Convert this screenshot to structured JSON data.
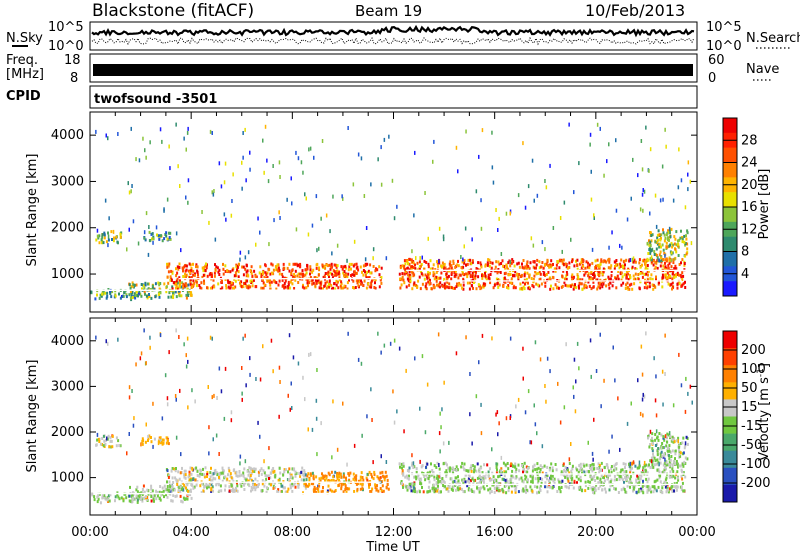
{
  "header": {
    "station": "Blackstone (fitACF)",
    "beam": "Beam 19",
    "date": "10/Feb/2013"
  },
  "top_panels": {
    "nsky_label": "N.Sky",
    "nsky_ticks": [
      "10^5",
      "10^0"
    ],
    "nsearch_label": "N.Search",
    "nsearch_ticks": [
      "10^5",
      "10^0"
    ],
    "freq_label": "Freq.",
    "freq_unit": "[MHz]",
    "freq_ticks": [
      "18",
      "8"
    ],
    "nave_label": "Nave",
    "nave_ticks": [
      "60",
      "0"
    ],
    "cpid_label": "CPID",
    "cpid_value": "twofsound -3501"
  },
  "chart_data": [
    {
      "type": "heatmap",
      "name": "power",
      "xlabel": "Time UT",
      "ylabel": "Slant Range [km]",
      "xlim_hours": [
        0,
        24
      ],
      "ylim": [
        180,
        4500
      ],
      "y_ticks": [
        "1000",
        "2000",
        "3000",
        "4000"
      ],
      "x_ticks": [
        "00:00",
        "04:00",
        "08:00",
        "12:00",
        "16:00",
        "20:00",
        "00:00"
      ],
      "colorbar": {
        "label": "Power [dB]",
        "ticks": [
          "4",
          "8",
          "12",
          "16",
          "20",
          "24",
          "28"
        ],
        "colors": [
          "#1a1aff",
          "#2256d8",
          "#1f6fa8",
          "#2e8a6e",
          "#4ea65a",
          "#8cc43a",
          "#e8e000",
          "#ffb400",
          "#ff8000",
          "#ff5000",
          "#ff2000",
          "#ee0000"
        ]
      },
      "echo_bands": [
        {
          "t0": 0.0,
          "t1": 2.0,
          "r0": 480,
          "r1": 700,
          "level": 0.3
        },
        {
          "t0": 1.5,
          "t1": 4.0,
          "r0": 500,
          "r1": 850,
          "level": 0.45
        },
        {
          "t0": 3.0,
          "t1": 11.5,
          "r0": 700,
          "r1": 1250,
          "level": 0.8
        },
        {
          "t0": 0.2,
          "t1": 1.2,
          "r0": 1700,
          "r1": 1950,
          "level": 0.4
        },
        {
          "t0": 2.0,
          "t1": 3.2,
          "r0": 1750,
          "r1": 1950,
          "level": 0.35
        },
        {
          "t0": 12.2,
          "t1": 23.5,
          "r0": 700,
          "r1": 1350,
          "level": 0.78
        },
        {
          "t0": 22.0,
          "t1": 23.6,
          "r0": 1300,
          "r1": 2000,
          "level": 0.5
        }
      ]
    },
    {
      "type": "heatmap",
      "name": "velocity",
      "xlabel": "Time UT",
      "ylabel": "Slant Range [km]",
      "xlim_hours": [
        0,
        24
      ],
      "ylim": [
        180,
        4500
      ],
      "y_ticks": [
        "1000",
        "2000",
        "3000",
        "4000"
      ],
      "x_ticks": [
        "00:00",
        "04:00",
        "08:00",
        "12:00",
        "16:00",
        "20:00",
        "00:00"
      ],
      "colorbar": {
        "label": "Velocity [m s",
        "label_sup": "-1",
        "label_end": "]",
        "ticks": [
          "200",
          "100",
          "50",
          "15",
          "-15",
          "-50",
          "-100",
          "-200"
        ],
        "colors": [
          "#1a1aaa",
          "#2a50c0",
          "#3a8a9a",
          "#4aa86a",
          "#70c840",
          "#c8c8c8",
          "#ffb000",
          "#ff8000",
          "#ff4000",
          "#ee0000"
        ]
      },
      "echo_bands": [
        {
          "t0": 0.0,
          "t1": 2.0,
          "r0": 480,
          "r1": 700,
          "level": 0.5
        },
        {
          "t0": 1.5,
          "t1": 4.0,
          "r0": 500,
          "r1": 850,
          "level": 0.5
        },
        {
          "t0": 3.0,
          "t1": 8.5,
          "r0": 700,
          "r1": 1250,
          "level": 0.55
        },
        {
          "t0": 8.5,
          "t1": 11.8,
          "r0": 700,
          "r1": 1150,
          "level": 0.72
        },
        {
          "t0": 0.2,
          "t1": 1.2,
          "r0": 1700,
          "r1": 1950,
          "level": 0.55
        },
        {
          "t0": 2.0,
          "t1": 3.2,
          "r0": 1750,
          "r1": 1950,
          "level": 0.65
        },
        {
          "t0": 12.2,
          "t1": 23.5,
          "r0": 700,
          "r1": 1350,
          "level": 0.5
        },
        {
          "t0": 22.0,
          "t1": 23.6,
          "r0": 1300,
          "r1": 2000,
          "level": 0.5
        }
      ]
    }
  ]
}
